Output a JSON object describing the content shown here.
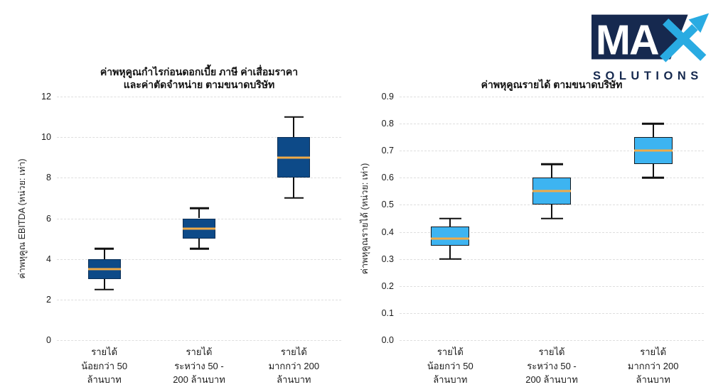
{
  "logo": {
    "text_main": "MA",
    "text_sub": "SOLUTIONS",
    "navy": "#16294f",
    "light_blue": "#29abe2"
  },
  "chart_data": [
    {
      "type": "box",
      "title": "ค่าพหุคูณกำไรก่อนดอกเบี้ย ภาษี ค่าเสื่อมราคา\nและค่าตัดจำหน่าย ตามขนาดบริษัท",
      "ylabel": "ค่าพหุคูณ EBITDA (หน่วย: เท่า)",
      "xlabel": "",
      "ylim": [
        0,
        12
      ],
      "yticks": [
        "0",
        "2",
        "4",
        "6",
        "8",
        "10",
        "12"
      ],
      "grid": "dashed-horizontal",
      "legend": "none",
      "categories": [
        "รายได้\nน้อยกว่า 50\nล้านบาท",
        "รายได้\nระหว่าง 50 -\n200 ล้านบาท",
        "รายได้\nมากกว่า 200\nล้านบาท"
      ],
      "boxes": [
        {
          "whisker_low": 2.5,
          "q1": 3.0,
          "median": 3.5,
          "q3": 4.0,
          "whisker_high": 4.5
        },
        {
          "whisker_low": 4.5,
          "q1": 5.0,
          "median": 5.5,
          "q3": 6.0,
          "whisker_high": 6.5
        },
        {
          "whisker_low": 7.0,
          "q1": 8.0,
          "median": 9.0,
          "q3": 10.0,
          "whisker_high": 11.0
        }
      ],
      "box_fill": "#0d4a88",
      "box_border": "#0a2e55",
      "median_color": "#efaa47",
      "whisker_color": "#111111"
    },
    {
      "type": "box",
      "title": "ค่าพหุคูณรายได้ ตามขนาดบริษัท",
      "ylabel": "ค่าพหุคูณรายได้ (หน่วย: เท่า)",
      "xlabel": "",
      "ylim": [
        0,
        0.9
      ],
      "yticks": [
        "0.0",
        "0.1",
        "0.2",
        "0.3",
        "0.4",
        "0.5",
        "0.6",
        "0.7",
        "0.8",
        "0.9"
      ],
      "grid": "dashed-horizontal",
      "legend": "none",
      "categories": [
        "รายได้\nน้อยกว่า 50\nล้านบาท",
        "รายได้\nระหว่าง 50 -\n200 ล้านบาท",
        "รายได้\nมากกว่า 200\nล้านบาท"
      ],
      "boxes": [
        {
          "whisker_low": 0.3,
          "q1": 0.35,
          "median": 0.375,
          "q3": 0.42,
          "whisker_high": 0.45
        },
        {
          "whisker_low": 0.45,
          "q1": 0.5,
          "median": 0.55,
          "q3": 0.6,
          "whisker_high": 0.65
        },
        {
          "whisker_low": 0.6,
          "q1": 0.65,
          "median": 0.7,
          "q3": 0.75,
          "whisker_high": 0.8
        }
      ],
      "box_fill": "#3db4f1",
      "box_border": "#15181c",
      "median_color": "#efaa47",
      "whisker_color": "#111111"
    }
  ]
}
